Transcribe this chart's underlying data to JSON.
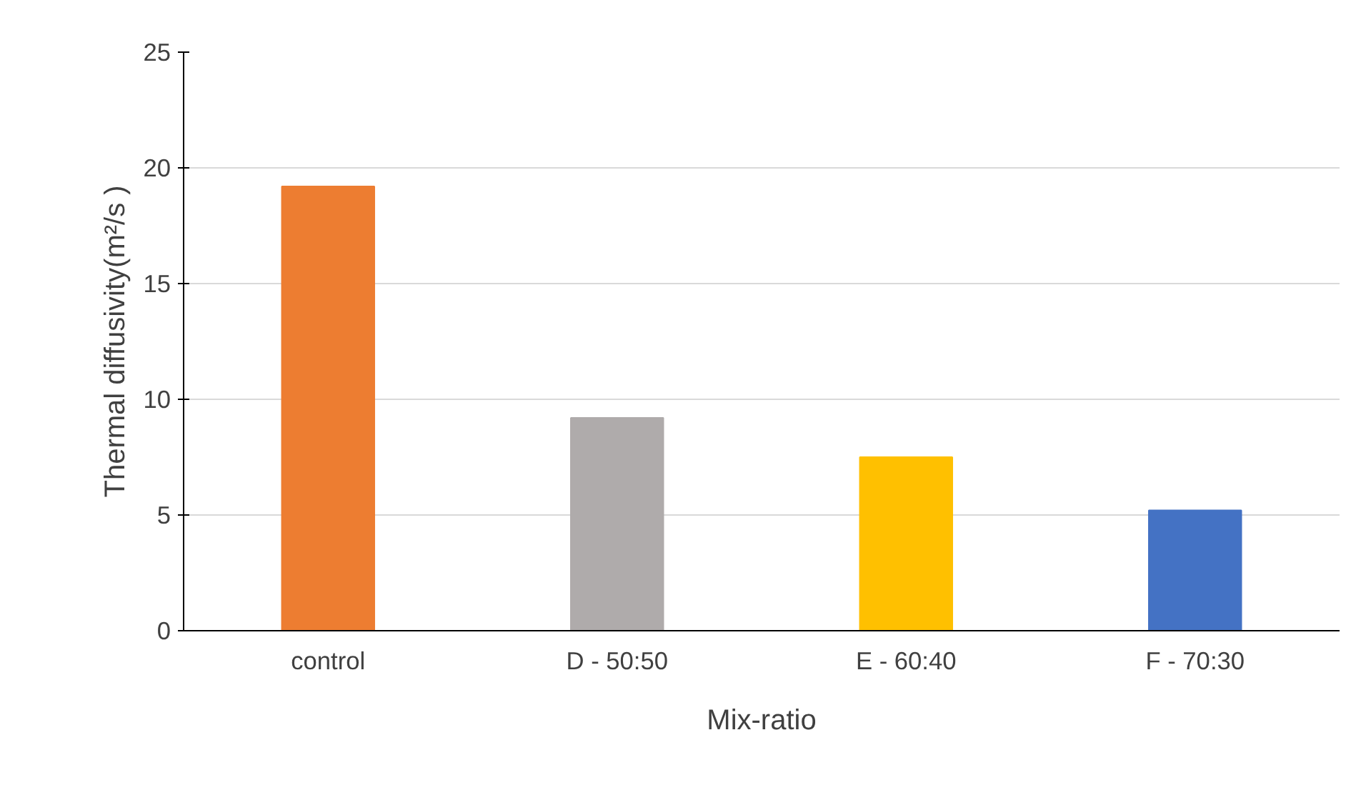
{
  "chart_data": {
    "type": "bar",
    "xlabel": "Mix-ratio",
    "ylabel": "Thermal diffusivity(m²/s )",
    "categories": [
      "control",
      "D - 50:50",
      "E - 60:40",
      "F - 70:30"
    ],
    "values": [
      19.2,
      9.2,
      7.5,
      5.2
    ],
    "colors": [
      "#ed7d31",
      "#afabab",
      "#ffc000",
      "#4472c4"
    ],
    "ylim": [
      0,
      25
    ],
    "yticks": [
      0,
      5,
      10,
      15,
      20,
      25
    ],
    "grid": "y"
  }
}
